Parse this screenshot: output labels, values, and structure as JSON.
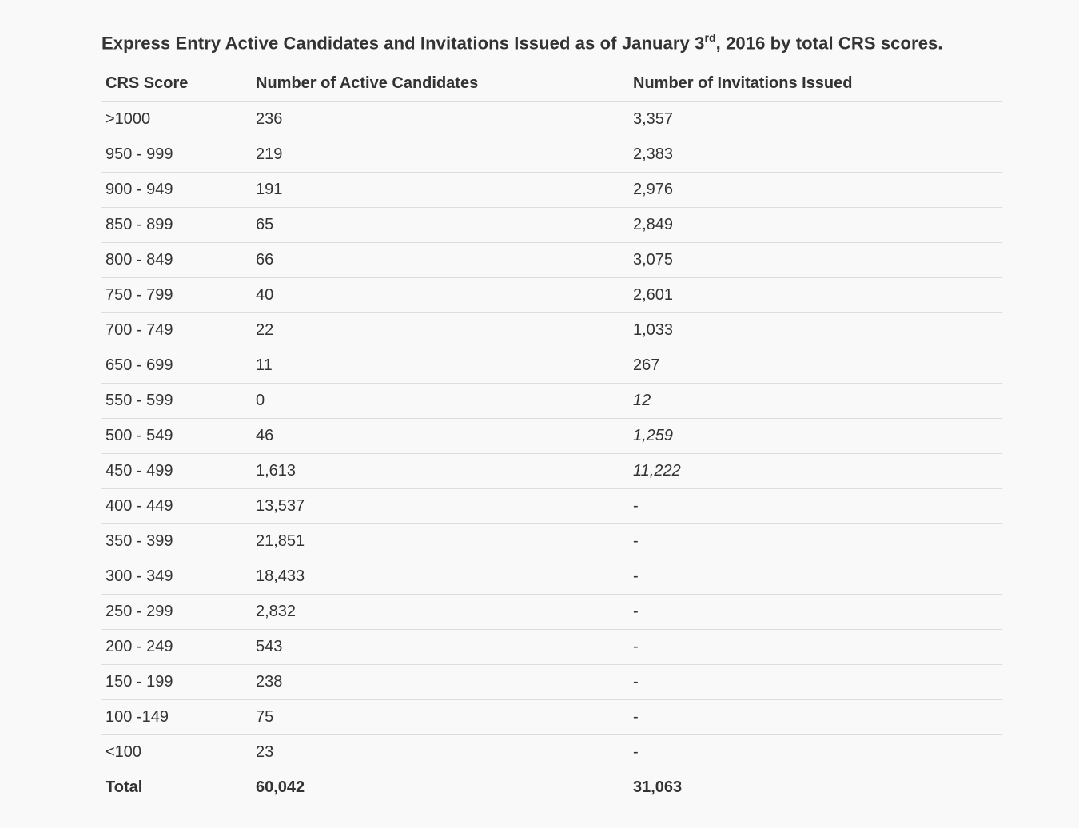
{
  "caption": {
    "text_before_sup": "Express Entry Active Candidates and Invitations Issued as of January 3",
    "sup": "rd",
    "text_after_sup": ", 2016 by total CRS scores."
  },
  "table": {
    "headers": [
      "CRS Score",
      "Number of Active Candidates",
      "Number of Invitations Issued"
    ],
    "rows": [
      {
        "score": ">1000",
        "candidates": "236",
        "invitations": "3,357",
        "italic": false
      },
      {
        "score": "950 - 999",
        "candidates": "219",
        "invitations": "2,383",
        "italic": false
      },
      {
        "score": "900 - 949",
        "candidates": "191",
        "invitations": "2,976",
        "italic": false
      },
      {
        "score": "850 - 899",
        "candidates": "65",
        "invitations": "2,849",
        "italic": false
      },
      {
        "score": "800 - 849",
        "candidates": "66",
        "invitations": "3,075",
        "italic": false
      },
      {
        "score": "750 - 799",
        "candidates": "40",
        "invitations": "2,601",
        "italic": false
      },
      {
        "score": "700 - 749",
        "candidates": "22",
        "invitations": "1,033",
        "italic": false
      },
      {
        "score": "650 - 699",
        "candidates": "11",
        "invitations": "267",
        "italic": false
      },
      {
        "score": "550 - 599",
        "candidates": "0",
        "invitations": "12",
        "italic": true
      },
      {
        "score": "500 - 549",
        "candidates": "46",
        "invitations": "1,259",
        "italic": true
      },
      {
        "score": "450 - 499",
        "candidates": "1,613",
        "invitations": "11,222",
        "italic": true
      },
      {
        "score": "400 - 449",
        "candidates": "13,537",
        "invitations": "-",
        "italic": false
      },
      {
        "score": "350 - 399",
        "candidates": "21,851",
        "invitations": "-",
        "italic": false
      },
      {
        "score": "300 - 349",
        "candidates": "18,433",
        "invitations": "-",
        "italic": false
      },
      {
        "score": "250 - 299",
        "candidates": "2,832",
        "invitations": "-",
        "italic": false
      },
      {
        "score": "200 - 249",
        "candidates": "543",
        "invitations": "-",
        "italic": false
      },
      {
        "score": "150 - 199",
        "candidates": "238",
        "invitations": "-",
        "italic": false
      },
      {
        "score": "100 -149",
        "candidates": "75",
        "invitations": "-",
        "italic": false
      },
      {
        "score": "<100",
        "candidates": "23",
        "invitations": "-",
        "italic": false
      }
    ],
    "total": {
      "label": "Total",
      "candidates": "60,042",
      "invitations": "31,063"
    }
  },
  "colors": {
    "background": "#f9f9f9",
    "text": "#333333",
    "row_border": "#dddddd"
  }
}
